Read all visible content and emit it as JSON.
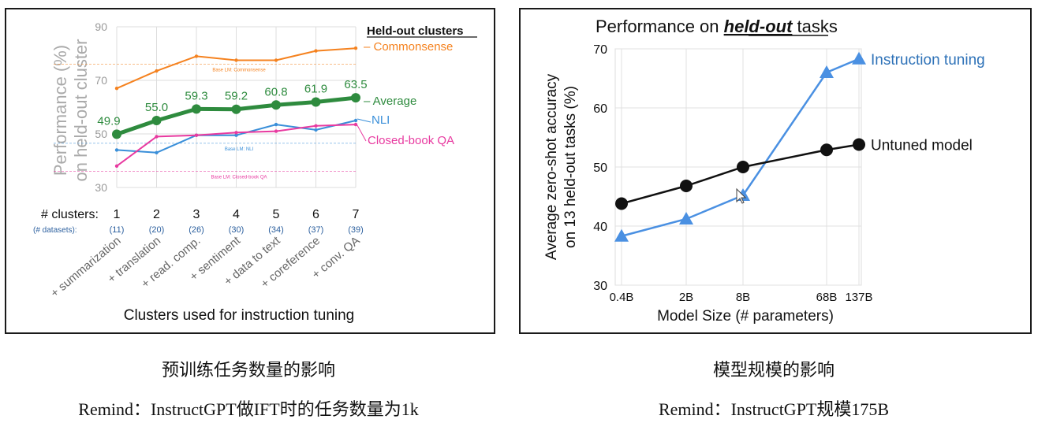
{
  "captions": {
    "left": "预训练任务数量的影响",
    "left_remind": "Remind：InstructGPT做IFT时的任务数量为1k",
    "right": "模型规模的影响",
    "right_remind": "Remind：InstructGPT规模175B"
  },
  "chart_data": [
    {
      "type": "line",
      "ylabel": "Performance (%) on held-out cluster",
      "xlabel": "Clusters used for instruction tuning",
      "ylim": [
        30,
        90
      ],
      "yticks": [
        "30",
        "50",
        "70",
        "90"
      ],
      "legend_title": "Held-out clusters",
      "x_header": "# clusters:",
      "x_subheader": "(# datasets):",
      "x": [
        "1",
        "2",
        "3",
        "4",
        "5",
        "6",
        "7"
      ],
      "datasets": [
        "(11)",
        "(20)",
        "(26)",
        "(30)",
        "(34)",
        "(37)",
        "(39)"
      ],
      "cluster_labels": [
        "+ summarization",
        "+ translation",
        "+ read. comp.",
        "+ sentiment",
        "+ data to text",
        "+ coreference",
        "+ conv. QA"
      ],
      "series": [
        {
          "name": "Commonsense",
          "values": [
            67,
            73.5,
            79,
            77.5,
            77.5,
            81,
            82
          ],
          "color": "#f5821f",
          "baseline": 76,
          "baseline_label": "Base LM: Commonsense"
        },
        {
          "name": "Average",
          "values": [
            49.9,
            55.0,
            59.3,
            59.2,
            60.8,
            61.9,
            63.5
          ],
          "labels": [
            "49.9",
            "55.0",
            "59.3",
            "59.2",
            "60.8",
            "61.9",
            "63.5"
          ],
          "color": "#2e8b3e"
        },
        {
          "name": "NLI",
          "values": [
            44,
            43,
            49.5,
            49.5,
            53.5,
            51.5,
            55
          ],
          "color": "#3a8fd9",
          "baseline": 46.5,
          "baseline_label": "Base LM: NLI"
        },
        {
          "name": "Closed-book QA",
          "values": [
            38,
            49,
            49.5,
            50.5,
            51,
            53,
            53.5
          ],
          "color": "#e83aa0",
          "baseline": 36,
          "baseline_label": "Base LM: Closed-book QA"
        }
      ]
    },
    {
      "type": "line",
      "title_prefix": "Performance on ",
      "title_emph": "held-out",
      "title_suffix": " tasks",
      "ylabel_line1": "Average zero-shot accuracy",
      "ylabel_line2": "on 13 held-out tasks (%)",
      "xlabel": "Model Size (# parameters)",
      "ylim": [
        30,
        70
      ],
      "yticks": [
        "30",
        "40",
        "50",
        "60",
        "70"
      ],
      "categories": [
        "0.4B",
        "2B",
        "8B",
        "68B",
        "137B"
      ],
      "series": [
        {
          "name": "Instruction tuning",
          "values": [
            38.3,
            41.2,
            45.2,
            66,
            68.3
          ],
          "color": "#4a90e2"
        },
        {
          "name": "Untuned model",
          "values": [
            43.8,
            46.8,
            50.0,
            52.9,
            53.8
          ],
          "color": "#111111"
        }
      ]
    }
  ]
}
